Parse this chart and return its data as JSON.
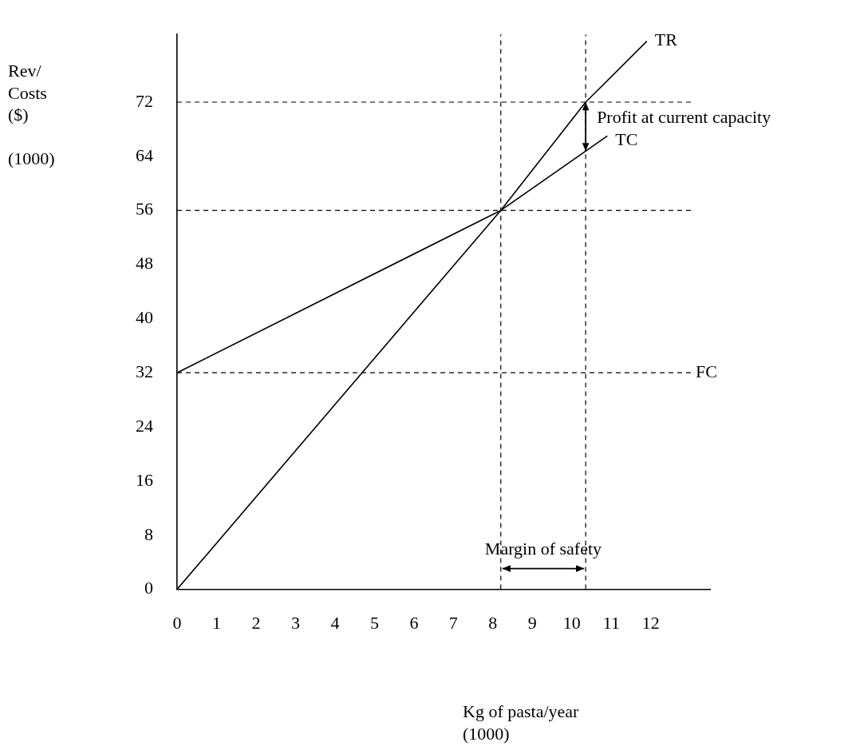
{
  "chart_data": {
    "type": "line",
    "xlabel": "Kg of pasta/year\n(1000)",
    "ylabel": "Rev/\nCosts\n($)\n\n(1000)",
    "xlim": [
      0,
      13.5
    ],
    "xticks": [
      0,
      1,
      2,
      3,
      4,
      5,
      6,
      7,
      8,
      9,
      10,
      11,
      12
    ],
    "ylim": [
      0,
      82
    ],
    "yticks": [
      0,
      8,
      16,
      24,
      32,
      40,
      48,
      56,
      64,
      72
    ],
    "grid": false,
    "marker": "none",
    "line_style": "solid",
    "series": [
      {
        "name": "TR",
        "color": "#000000",
        "x": [
          0,
          8.2,
          10.35,
          11.9
        ],
        "values": [
          0,
          56,
          72,
          81
        ]
      },
      {
        "name": "TC",
        "color": "#000000",
        "x": [
          0,
          8.2,
          10.9
        ],
        "values": [
          32,
          56,
          67
        ]
      }
    ],
    "ref_lines": [
      {
        "axis": "y",
        "value": 72,
        "line_style": "dashed",
        "color": "#000000"
      },
      {
        "axis": "y",
        "value": 56,
        "line_style": "dashed",
        "color": "#000000"
      },
      {
        "axis": "y",
        "value": 32,
        "label": "FC",
        "line_style": "dashed",
        "color": "#000000"
      },
      {
        "axis": "x",
        "value": 8.2,
        "line_style": "dashed",
        "color": "#000000"
      },
      {
        "axis": "x",
        "value": 10.35,
        "line_style": "dashed",
        "color": "#000000"
      }
    ],
    "annotations": [
      {
        "text": "Profit at current capacity",
        "x": 10.35,
        "y": 68
      },
      "Margin of safety"
    ]
  }
}
